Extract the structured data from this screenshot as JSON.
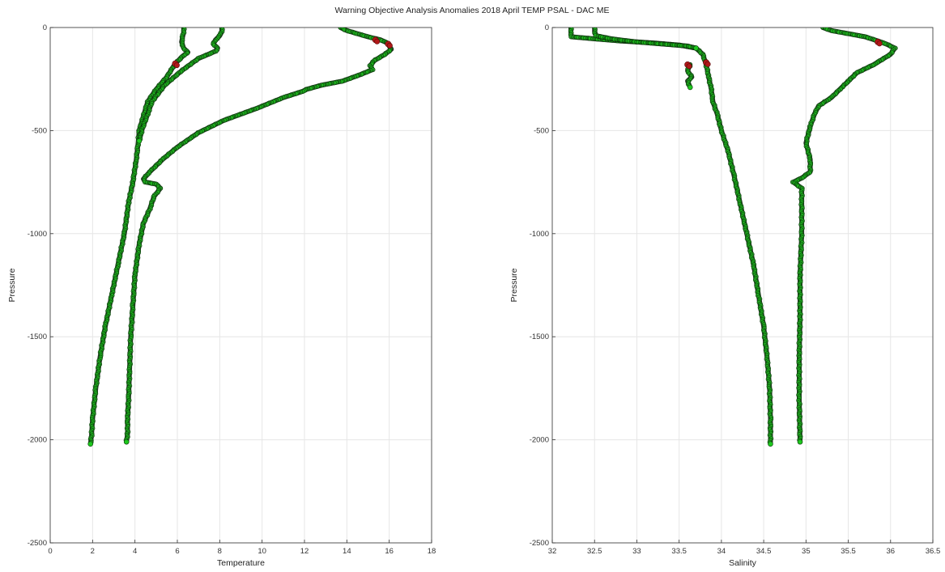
{
  "figure": {
    "title": "Warning Objective Analysis Anomalies 2018 April TEMP PSAL - DAC ME"
  },
  "colors": {
    "profile_fill": "#1ec81e",
    "profile_edge": "#0a3a0a",
    "dense_core": "#0c1a0c",
    "flagged": "#b01818"
  },
  "chart_data": [
    {
      "type": "scatter",
      "xlabel": "Temperature",
      "ylabel": "Pressure",
      "xlim": [
        0,
        18
      ],
      "ylim": [
        -2500,
        0
      ],
      "xticks": [
        0,
        2,
        4,
        6,
        8,
        10,
        12,
        14,
        16,
        18
      ],
      "yticks": [
        -2500,
        -2000,
        -1500,
        -1000,
        -500,
        0
      ],
      "grid": true,
      "series": [
        {
          "x": [
            6.3,
            6.3,
            6.25,
            6.2,
            6.3,
            6.5,
            6.3,
            5.9,
            5.5,
            5.0,
            4.6,
            4.4,
            4.2,
            4.15,
            4.05,
            3.9,
            3.7,
            3.5,
            3.2,
            2.9,
            2.6,
            2.35,
            2.15,
            2.0,
            1.95,
            1.9
          ],
          "y": [
            0,
            -25,
            -45,
            -70,
            -100,
            -120,
            -135,
            -175,
            -240,
            -300,
            -360,
            -430,
            -500,
            -560,
            -650,
            -750,
            -850,
            -1000,
            -1150,
            -1300,
            -1450,
            -1600,
            -1750,
            -1900,
            -1980,
            -2020
          ]
        },
        {
          "x": [
            8.1,
            8.1,
            8.0,
            7.8,
            7.7,
            7.9,
            7.8,
            7.0,
            6.2,
            5.4,
            4.8,
            4.6,
            4.35,
            4.2
          ],
          "y": [
            0,
            -20,
            -40,
            -60,
            -80,
            -100,
            -115,
            -150,
            -210,
            -280,
            -360,
            -420,
            -490,
            -550
          ]
        },
        {
          "x": [
            13.7,
            14.0,
            14.5,
            15.0,
            15.6,
            15.9,
            16.0,
            16.1,
            15.8,
            15.3,
            15.1,
            15.2,
            14.6,
            13.8,
            12.8,
            12.1,
            11.9,
            11.0,
            9.8,
            8.2,
            7.0,
            6.0,
            5.3,
            4.7,
            4.4,
            4.5,
            5.0,
            5.2,
            4.9,
            4.7,
            4.4,
            4.2,
            4.0,
            3.9,
            3.8,
            3.75,
            3.7,
            3.65,
            3.65,
            3.6
          ],
          "y": [
            0,
            -15,
            -30,
            -45,
            -60,
            -75,
            -90,
            -105,
            -130,
            -160,
            -185,
            -205,
            -230,
            -260,
            -280,
            -300,
            -310,
            -340,
            -390,
            -450,
            -510,
            -580,
            -640,
            -700,
            -735,
            -750,
            -760,
            -780,
            -820,
            -880,
            -950,
            -1050,
            -1200,
            -1350,
            -1500,
            -1650,
            -1800,
            -1900,
            -1970,
            -2010
          ]
        }
      ],
      "flagged": {
        "x": [
          5.9,
          15.35,
          15.95
        ],
        "y": [
          -175,
          -60,
          -80
        ]
      }
    },
    {
      "type": "scatter",
      "xlabel": "Salinity",
      "ylabel": "Pressure",
      "xlim": [
        32,
        36.5
      ],
      "ylim": [
        -2500,
        0
      ],
      "xticks": [
        32,
        32.5,
        33,
        33.5,
        34,
        34.5,
        35,
        35.5,
        36,
        36.5
      ],
      "yticks": [
        -2500,
        -2000,
        -1500,
        -1000,
        -500,
        0
      ],
      "grid": true,
      "series": [
        {
          "x": [
            32.22,
            32.22,
            32.23,
            32.5,
            32.8,
            33.2,
            33.5,
            33.7,
            33.78,
            33.82,
            33.85,
            33.88,
            33.9,
            33.95,
            34.0,
            34.08,
            34.15,
            34.22,
            34.3,
            34.38,
            34.44,
            34.5,
            34.54,
            34.57,
            34.58,
            34.58
          ],
          "y": [
            0,
            -25,
            -45,
            -55,
            -65,
            -75,
            -85,
            -100,
            -130,
            -180,
            -240,
            -300,
            -360,
            -420,
            -500,
            -600,
            -720,
            -850,
            -1000,
            -1150,
            -1300,
            -1450,
            -1600,
            -1750,
            -1900,
            -2020
          ]
        },
        {
          "x": [
            32.5,
            32.5,
            32.52,
            32.7,
            33.0,
            33.3,
            33.6,
            33.7
          ],
          "y": [
            0,
            -20,
            -40,
            -55,
            -70,
            -80,
            -90,
            -100
          ]
        },
        {
          "x": [
            33.63,
            33.6,
            33.65,
            33.6,
            33.63
          ],
          "y": [
            -180,
            -210,
            -240,
            -260,
            -290
          ]
        },
        {
          "x": [
            35.2,
            35.3,
            35.5,
            35.7,
            35.85,
            35.95,
            36.05,
            36.0,
            35.8,
            35.6,
            35.5,
            35.4,
            35.3,
            35.15,
            35.1,
            35.05,
            35.0,
            35.05,
            35.05,
            34.95,
            34.85,
            34.95,
            34.95,
            34.95,
            34.93,
            34.93,
            34.92,
            34.92,
            34.93
          ],
          "y": [
            0,
            -15,
            -30,
            -45,
            -65,
            -80,
            -100,
            -130,
            -180,
            -220,
            -260,
            -300,
            -340,
            -380,
            -420,
            -480,
            -560,
            -640,
            -700,
            -730,
            -750,
            -780,
            -850,
            -1000,
            -1200,
            -1400,
            -1600,
            -1800,
            -2010
          ]
        }
      ],
      "flagged": {
        "x": [
          33.6,
          33.82,
          35.85
        ],
        "y": [
          -180,
          -170,
          -70
        ]
      }
    }
  ]
}
